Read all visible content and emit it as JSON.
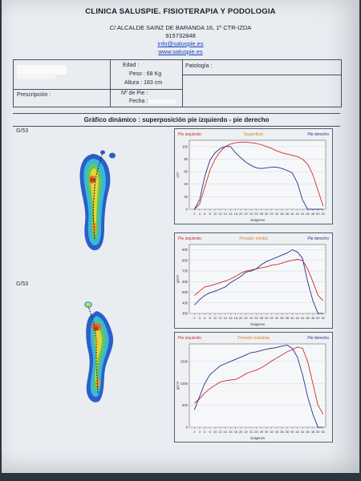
{
  "header": {
    "clinic_name": "CLINICA SALUSPIE. FISIOTERAPIA Y PODOLOGIA",
    "address": "C/ ALCALDE SAINZ DE BARANDA 16, 1º CTR-IZDA",
    "phone": "915732848",
    "email": "info@saluspie.es",
    "website": "www.saluspie.es"
  },
  "patient": {
    "edad_label": "Edad :",
    "peso": "Peso : 68 Kg",
    "altura": "Altura : 183 cm",
    "pie_label": "Nº de Pie :",
    "fecha_label": "Fecha :",
    "patologia_label": "Patología :",
    "prescripcion_label": "Prescripción :"
  },
  "section_title": "Gráfico dinámico : superposición pie izquierdo - pie derecho",
  "footprints": [
    {
      "label": "G/53",
      "marker": "H"
    },
    {
      "label": "G/53",
      "marker": "H"
    }
  ],
  "colors": {
    "left_foot": "#d02a2a",
    "right_foot": "#2a2f8c",
    "title_orange": "#e0801a"
  },
  "chart_data": [
    {
      "type": "line",
      "title": "Superficie",
      "legend_left": "Pie izquierdo",
      "legend_right": "Pie derecho",
      "xlabel": "imágenes",
      "ylabel": "cm²",
      "x": [
        2,
        4,
        6,
        8,
        10,
        12,
        14,
        16,
        18,
        20,
        22,
        24,
        26,
        28,
        30,
        32,
        34,
        36,
        38,
        40,
        42,
        44,
        46,
        48,
        50,
        52
      ],
      "yticks": [
        0,
        20,
        40,
        60,
        80,
        100
      ],
      "ylim": [
        0,
        110
      ],
      "series": [
        {
          "name": "Pie izquierdo",
          "values": [
            0,
            8,
            35,
            62,
            80,
            92,
            100,
            104,
            106,
            107,
            107,
            106,
            105,
            103,
            100,
            97,
            93,
            90,
            88,
            86,
            84,
            80,
            72,
            55,
            30,
            5
          ]
        },
        {
          "name": "Pie derecho",
          "values": [
            0,
            15,
            52,
            78,
            90,
            97,
            100,
            100,
            90,
            82,
            75,
            70,
            66,
            65,
            66,
            67,
            67,
            65,
            62,
            58,
            42,
            15,
            0,
            0,
            0,
            0
          ]
        }
      ]
    },
    {
      "type": "line",
      "title": "Presión media",
      "legend_left": "Pie izquierdo",
      "legend_right": "Pie derecho",
      "xlabel": "imágenes",
      "ylabel": "g/cm²",
      "x": [
        2,
        4,
        6,
        8,
        10,
        12,
        14,
        16,
        18,
        20,
        22,
        24,
        26,
        28,
        30,
        32,
        34,
        36,
        38,
        40,
        42,
        44,
        46,
        48,
        50,
        52
      ],
      "yticks": [
        300,
        400,
        500,
        600,
        700,
        800,
        900
      ],
      "ylim": [
        300,
        950
      ],
      "series": [
        {
          "name": "Pie izquierdo",
          "values": [
            470,
            510,
            550,
            560,
            575,
            590,
            605,
            625,
            650,
            680,
            700,
            710,
            720,
            730,
            740,
            755,
            760,
            775,
            790,
            800,
            810,
            800,
            720,
            600,
            470,
            420
          ]
        },
        {
          "name": "Pie derecho",
          "values": [
            380,
            430,
            470,
            495,
            510,
            530,
            550,
            590,
            620,
            650,
            690,
            700,
            720,
            760,
            790,
            810,
            830,
            850,
            870,
            900,
            880,
            820,
            600,
            420,
            300,
            300
          ]
        }
      ]
    },
    {
      "type": "line",
      "title": "Presión máxima",
      "legend_left": "Pie izquierdo",
      "legend_right": "Pie derecho",
      "xlabel": "imágenes",
      "ylabel": "g/cm²",
      "x": [
        2,
        4,
        6,
        8,
        10,
        12,
        14,
        16,
        18,
        20,
        22,
        24,
        26,
        28,
        30,
        32,
        34,
        36,
        38,
        40,
        42,
        44,
        46,
        48,
        50,
        52
      ],
      "yticks": [
        0,
        500,
        1000,
        1500
      ],
      "ylim": [
        0,
        1900
      ],
      "series": [
        {
          "name": "Pie izquierdo",
          "values": [
            550,
            650,
            780,
            880,
            960,
            1030,
            1060,
            1080,
            1090,
            1150,
            1220,
            1270,
            1300,
            1360,
            1430,
            1510,
            1580,
            1650,
            1720,
            1770,
            1830,
            1800,
            1500,
            1000,
            500,
            300
          ]
        },
        {
          "name": "Pie derecho",
          "values": [
            400,
            700,
            1000,
            1200,
            1300,
            1400,
            1450,
            1500,
            1550,
            1600,
            1650,
            1700,
            1720,
            1750,
            1780,
            1800,
            1820,
            1850,
            1870,
            1800,
            1600,
            1200,
            700,
            300,
            0,
            0
          ]
        }
      ]
    }
  ]
}
